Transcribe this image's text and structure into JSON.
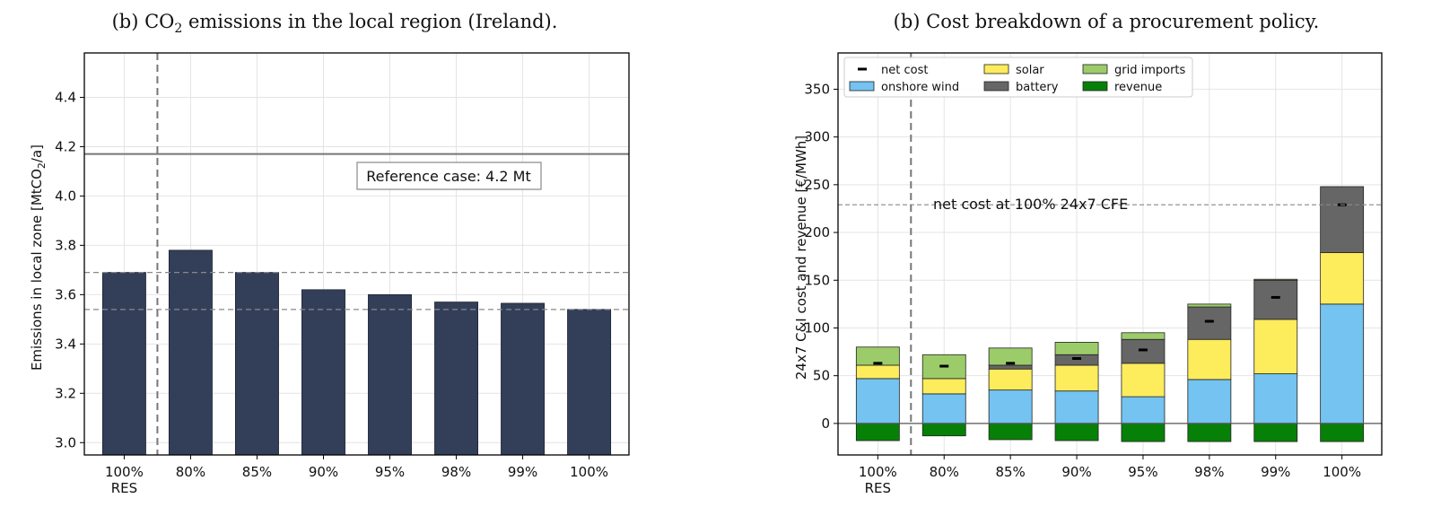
{
  "chart_data": [
    {
      "type": "bar",
      "caption_prefix": "(b) CO",
      "caption_sub": "2",
      "caption_suffix": " emissions in the local region (Ireland).",
      "ylabel_prefix": "Emissions in local zone [MtCO",
      "ylabel_sub": "2",
      "ylabel_suffix": "/a]",
      "categories": [
        "100%",
        "80%",
        "85%",
        "90%",
        "95%",
        "98%",
        "99%",
        "100%"
      ],
      "category_sublabels": [
        "RES",
        "",
        "",
        "",
        "",
        "",
        "",
        ""
      ],
      "values": [
        3.69,
        3.78,
        3.69,
        3.62,
        3.6,
        3.57,
        3.565,
        3.54
      ],
      "ylim": [
        2.95,
        4.58
      ],
      "yticks": [
        3.0,
        3.2,
        3.4,
        3.6,
        3.8,
        4.0,
        4.2,
        4.4
      ],
      "ytick_labels": [
        "3.0",
        "3.2",
        "3.4",
        "3.6",
        "3.8",
        "4.0",
        "4.2",
        "4.4"
      ],
      "reference_value": 4.17,
      "reference_label": "Reference case: 4.2 Mt",
      "dashed_lines": [
        3.69,
        3.54
      ],
      "bar_color": "#333f59",
      "grid": true
    },
    {
      "type": "stacked_bar",
      "caption": "(b) Cost breakdown of a procurement policy.",
      "ylabel": "24x7 C&I cost and revenue [€/MWh]",
      "categories": [
        "100%",
        "80%",
        "85%",
        "90%",
        "95%",
        "98%",
        "99%",
        "100%"
      ],
      "category_sublabels": [
        "RES",
        "",
        "",
        "",
        "",
        "",
        "",
        ""
      ],
      "ylim": [
        -33,
        388
      ],
      "yticks": [
        0,
        50,
        100,
        150,
        200,
        250,
        300,
        350
      ],
      "ytick_labels": [
        "0",
        "50",
        "100",
        "150",
        "200",
        "250",
        "300",
        "350"
      ],
      "series": [
        {
          "name": "onshore wind",
          "color": "#74c3f0",
          "values": [
            47,
            31,
            35,
            34,
            28,
            46,
            52,
            125
          ]
        },
        {
          "name": "solar",
          "color": "#fdec5c",
          "values": [
            14,
            16,
            22,
            27,
            35,
            42,
            57,
            54
          ]
        },
        {
          "name": "battery",
          "color": "#666666",
          "values": [
            0,
            0,
            4,
            11,
            25,
            34,
            41,
            69
          ]
        },
        {
          "name": "grid imports",
          "color": "#9ccc6a",
          "values": [
            19,
            25,
            18,
            13,
            7,
            3,
            1,
            0
          ]
        },
        {
          "name": "revenue",
          "color": "#078007",
          "values": [
            -18,
            -13,
            -17,
            -18,
            -19,
            -19,
            -19,
            -19
          ]
        }
      ],
      "net_cost": {
        "name": "net cost",
        "values": [
          63,
          60,
          63,
          68,
          77,
          107,
          132,
          229
        ]
      },
      "reference_value": 229,
      "reference_label": "net cost at 100% 24x7 CFE",
      "grid": true,
      "legend_position": "top-left"
    }
  ]
}
